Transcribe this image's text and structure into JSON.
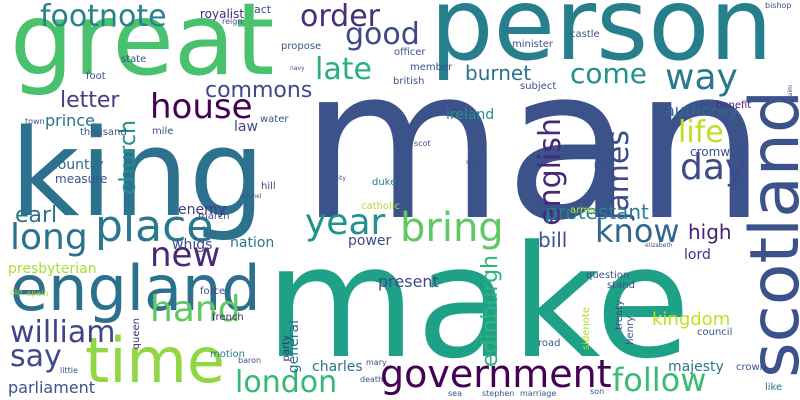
{
  "words": [
    {
      "text": "man",
      "color": "#3b528b"
    },
    {
      "text": "make",
      "color": "#1fa187"
    },
    {
      "text": "person",
      "color": "#277f8e"
    },
    {
      "text": "king",
      "color": "#2c728e"
    },
    {
      "text": "great",
      "color": "#4ac16d"
    },
    {
      "text": "england",
      "color": "#2d708e"
    },
    {
      "text": "time",
      "color": "#90d743"
    },
    {
      "text": "scotland",
      "color": "#3b528b"
    },
    {
      "text": "government",
      "color": "#440154"
    },
    {
      "text": "place",
      "color": "#2a788e"
    },
    {
      "text": "house",
      "color": "#440154"
    },
    {
      "text": "london",
      "color": "#35b779"
    },
    {
      "text": "hand",
      "color": "#5ec962"
    },
    {
      "text": "year",
      "color": "#21918c"
    },
    {
      "text": "new",
      "color": "#482878"
    },
    {
      "text": "long",
      "color": "#2c728e"
    },
    {
      "text": "william",
      "color": "#414487"
    },
    {
      "text": "say",
      "color": "#3e4a89"
    },
    {
      "text": "way",
      "color": "#2a788e"
    },
    {
      "text": "come",
      "color": "#21918c"
    },
    {
      "text": "day",
      "color": "#3e4a89"
    },
    {
      "text": "bring",
      "color": "#5ec962"
    },
    {
      "text": "follow",
      "color": "#3bbb75"
    },
    {
      "text": "life",
      "color": "#bddf26"
    },
    {
      "text": "know",
      "color": "#31688e"
    },
    {
      "text": "good",
      "color": "#3e4989"
    },
    {
      "text": "order",
      "color": "#472d7b"
    },
    {
      "text": "footnote",
      "color": "#26828e"
    },
    {
      "text": "late",
      "color": "#29af7f"
    },
    {
      "text": "english",
      "color": "#482878"
    },
    {
      "text": "james",
      "color": "#3e4a89"
    },
    {
      "text": "commons",
      "color": "#3e4989"
    },
    {
      "text": "edinburgh",
      "color": "#2fb47c"
    },
    {
      "text": "church",
      "color": "#21918c"
    },
    {
      "text": "earl",
      "color": "#2c728e"
    },
    {
      "text": "letter",
      "color": "#433e85"
    },
    {
      "text": "protestant",
      "color": "#287d8e"
    },
    {
      "text": "high",
      "color": "#481f70"
    },
    {
      "text": "kingdom",
      "color": "#c2df23"
    },
    {
      "text": "burnet",
      "color": "#2c728e"
    },
    {
      "text": "bill",
      "color": "#3b528b"
    },
    {
      "text": "authority",
      "color": "#31688e"
    },
    {
      "text": "prince",
      "color": "#2c728e"
    },
    {
      "text": "presbyterian",
      "color": "#addc30"
    },
    {
      "text": "parliament",
      "color": "#3b528b"
    },
    {
      "text": "general",
      "color": "#2c728e"
    },
    {
      "text": "enemy",
      "color": "#443983"
    },
    {
      "text": "lord",
      "color": "#472d7b"
    },
    {
      "text": "whigs",
      "color": "#3e4a89"
    },
    {
      "text": "nation",
      "color": "#2a788e"
    },
    {
      "text": "power",
      "color": "#3e4a89"
    },
    {
      "text": "cromwell",
      "color": "#3b528b"
    },
    {
      "text": "ireland",
      "color": "#21918c"
    },
    {
      "text": "present",
      "color": "#3e4a89"
    },
    {
      "text": "law",
      "color": "#3e4a89"
    },
    {
      "text": "charles",
      "color": "#2c728e"
    },
    {
      "text": "majesty",
      "color": "#2a788e"
    },
    {
      "text": "country",
      "color": "#31688e"
    },
    {
      "text": "royalist",
      "color": "#482878"
    },
    {
      "text": "commons2",
      "color": "#3e4989"
    }
  ],
  "small_words": [
    {
      "text": "act",
      "color": "#3e4a89"
    },
    {
      "text": "thousand",
      "color": "#3b528b"
    },
    {
      "text": "measure",
      "color": "#3b528b"
    },
    {
      "text": "queen",
      "color": "#472d7b"
    },
    {
      "text": "party",
      "color": "#472d7b"
    },
    {
      "text": "french",
      "color": "#482878"
    },
    {
      "text": "motion",
      "color": "#2a788e"
    },
    {
      "text": "catholic",
      "color": "#addc30"
    },
    {
      "text": "army",
      "color": "#b5de2b"
    },
    {
      "text": "force",
      "color": "#3e4a89"
    },
    {
      "text": "march",
      "color": "#3b528b"
    },
    {
      "text": "duke",
      "color": "#2a788e"
    },
    {
      "text": "hill",
      "color": "#3e4a89"
    },
    {
      "text": "council",
      "color": "#3b528b"
    },
    {
      "text": "benefit",
      "color": "#482878"
    },
    {
      "text": "crown",
      "color": "#3b528b"
    },
    {
      "text": "like",
      "color": "#2c728e"
    },
    {
      "text": "stand",
      "color": "#3b528b"
    },
    {
      "text": "question",
      "color": "#3b528b"
    },
    {
      "text": "treaty",
      "color": "#3b528b"
    },
    {
      "text": "henry",
      "color": "#3b528b"
    },
    {
      "text": "sidenote",
      "color": "#addc30"
    },
    {
      "text": "road",
      "color": "#3b528b"
    },
    {
      "text": "baron",
      "color": "#3b528b"
    },
    {
      "text": "death",
      "color": "#3b528b"
    },
    {
      "text": "sea",
      "color": "#3b528b"
    },
    {
      "text": "stephen",
      "color": "#3b528b"
    },
    {
      "text": "marriage",
      "color": "#3b528b"
    },
    {
      "text": "son",
      "color": "#3b528b"
    },
    {
      "text": "mary",
      "color": "#3b528b"
    },
    {
      "text": "little",
      "color": "#3b528b"
    },
    {
      "text": "old",
      "color": "#addc30"
    },
    {
      "text": "spain",
      "color": "#addc30"
    },
    {
      "text": "reign",
      "color": "#3b528b"
    },
    {
      "text": "state",
      "color": "#3b528b"
    },
    {
      "text": "foot",
      "color": "#3b528b"
    },
    {
      "text": "propose",
      "color": "#3b528b"
    },
    {
      "text": "water",
      "color": "#3b528b"
    },
    {
      "text": "member",
      "color": "#3b528b"
    },
    {
      "text": "officer",
      "color": "#3b528b"
    },
    {
      "text": "british",
      "color": "#3b528b"
    },
    {
      "text": "subject",
      "color": "#3b528b"
    },
    {
      "text": "minister",
      "color": "#3b528b"
    },
    {
      "text": "castle",
      "color": "#3b528b"
    },
    {
      "text": "bishop",
      "color": "#3b528b"
    },
    {
      "text": "mile",
      "color": "#3b528b"
    },
    {
      "text": "town",
      "color": "#3b528b"
    },
    {
      "text": "street",
      "color": "#3b528b"
    },
    {
      "text": "land",
      "color": "#3b528b"
    },
    {
      "text": "scot",
      "color": "#3b528b"
    },
    {
      "text": "claim",
      "color": "#3b528b"
    },
    {
      "text": "elizabeth",
      "color": "#3b528b"
    },
    {
      "text": "city",
      "color": "#3b528b"
    },
    {
      "text": "colonel",
      "color": "#3b528b"
    },
    {
      "text": "navy",
      "color": "#3b528b"
    }
  ]
}
